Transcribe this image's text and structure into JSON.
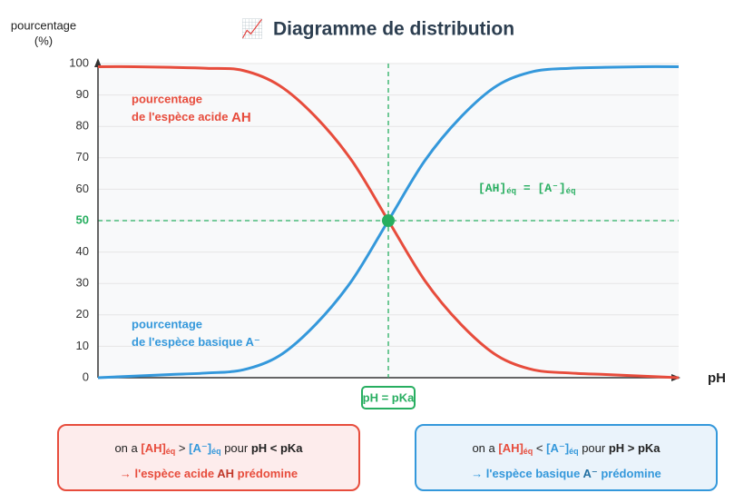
{
  "chart_data": {
    "type": "line",
    "title_icon": "📈",
    "title": "Diagramme de distribution",
    "y_label": [
      "pourcentage",
      "(%)"
    ],
    "x_label": "pH",
    "categories": [
      null,
      null,
      null,
      null,
      null,
      null,
      null,
      null,
      "pH = pKa",
      null,
      null,
      null,
      null,
      null,
      null,
      null,
      null
    ],
    "series": [
      {
        "name": "AH",
        "color": "#e74c3c",
        "values": [
          99,
          99,
          98.8,
          98.5,
          97.8,
          93,
          83,
          69,
          50,
          31,
          17,
          7,
          2.5,
          1.5,
          1,
          0.5,
          0
        ]
      },
      {
        "name": "A⁻",
        "color": "#3498db",
        "values": [
          0,
          0.5,
          1,
          1.5,
          2.5,
          7,
          17,
          31,
          50,
          69,
          83,
          93,
          97.5,
          98.5,
          98.8,
          99,
          99
        ]
      }
    ],
    "ylim": [
      0,
      100
    ],
    "yticks": [
      0,
      10,
      20,
      30,
      40,
      50,
      60,
      70,
      80,
      90,
      100
    ],
    "grid": true,
    "reference": {
      "y": 50,
      "color": "#27ae60"
    },
    "annotations": {
      "acid": [
        "pourcentage",
        "de l'espèce acide ",
        "AH"
      ],
      "base": [
        "pourcentage",
        "de l'espèce basique ",
        "A⁻"
      ],
      "equality": [
        "[AH]",
        "éq",
        " = [A⁻]",
        "éq"
      ]
    },
    "boxes": {
      "left": {
        "line1": [
          "on a ",
          "[AH]",
          "éq",
          " > ",
          "[A⁻]",
          "éq",
          " pour ",
          "pH < pKa"
        ],
        "line2": [
          "→ l'espèce acide ",
          "AH",
          " prédomine"
        ]
      },
      "right": {
        "line1": [
          "on a ",
          "[AH]",
          "éq",
          " < ",
          "[A⁻]",
          "éq",
          " pour ",
          "pH > pKa"
        ],
        "line2": [
          "→ l'espèce basique ",
          "A⁻",
          " prédomine"
        ]
      }
    }
  }
}
